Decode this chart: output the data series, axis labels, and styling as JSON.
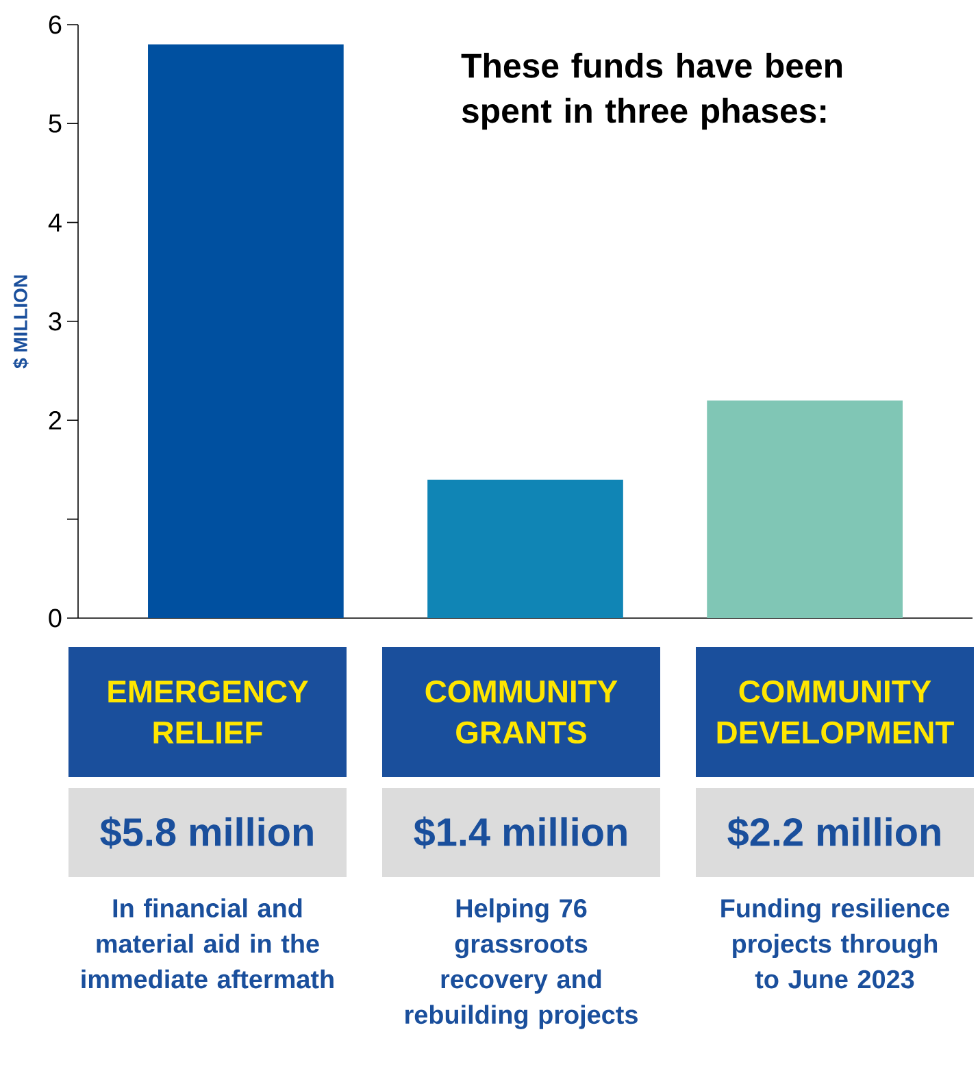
{
  "chart_data": {
    "type": "bar",
    "title": "These funds have been spent in three phases:",
    "ylabel": "$ MILLION",
    "categories": [
      "EMERGENCY RELIEF",
      "COMMUNITY GRANTS",
      "COMMUNITY DEVELOPMENT"
    ],
    "values": [
      5.8,
      1.4,
      2.2
    ],
    "colors": [
      "#0050a0",
      "#1085b5",
      "#80c6b5"
    ],
    "value_labels": [
      "$5.8 million",
      "$1.4 million",
      "$2.2 million"
    ],
    "annotations": [
      "In financial and material aid in the immediate aftermath",
      "Helping 76 grassroots recovery and rebuilding projects",
      "Funding resilience projects through to June 2023"
    ],
    "ylim": [
      0,
      6
    ],
    "yticks": [
      0,
      {
        "value": 1,
        "label": null
      },
      2,
      3,
      4,
      5,
      6
    ],
    "grid": false
  }
}
